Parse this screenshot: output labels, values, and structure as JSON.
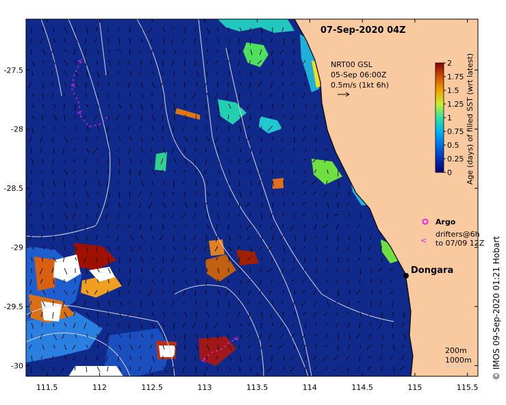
{
  "map": {
    "title": "07-Sep-2020 04Z",
    "x_ticks": [
      "111.5",
      "112",
      "112.5",
      "113",
      "113.5",
      "114",
      "114.5",
      "115",
      "115.5"
    ],
    "x_tick_values": [
      111.5,
      112,
      112.5,
      113,
      113.5,
      114,
      114.5,
      115,
      115.5
    ],
    "y_ticks": [
      "-27.5",
      "-28",
      "-28.5",
      "-29",
      "-29.5",
      "-30"
    ],
    "y_tick_values": [
      -27.5,
      -28,
      -28.5,
      -29,
      -29.5,
      -30
    ],
    "lon_range": [
      111.3,
      115.6
    ],
    "lat_range": [
      -27.07,
      -30.09
    ],
    "colors": {
      "ocean": "#102a8c",
      "land": "#f9c9a0",
      "current_arrow": "#000000",
      "contour": "#d9d9e8",
      "argo": "#ee22ee",
      "drifter": "#ee22ee"
    }
  },
  "current_legend": {
    "line1": "NRT00 GSL",
    "line2": "05-Sep 06:00Z",
    "line3": "0.5m/s (1kt 6h)"
  },
  "colorbar": {
    "label": "Age (days) of filled SST (wrt latest)",
    "ticks": [
      "0",
      "0.25",
      "0.5",
      "0.75",
      "1",
      "1.25",
      "1.5",
      "1.75",
      "2"
    ],
    "tick_values": [
      0,
      0.25,
      0.5,
      0.75,
      1,
      1.25,
      1.5,
      1.75,
      2
    ],
    "stops": [
      "#00006e",
      "#0044cc",
      "#00aaff",
      "#20e0c0",
      "#70f060",
      "#e8e820",
      "#f0a000",
      "#d05000",
      "#8a0000"
    ]
  },
  "legend": {
    "argo_label": "Argo",
    "drifter_line1": "drifters@6h",
    "drifter_line2": "to 07/09 12Z"
  },
  "place": {
    "name": "Dongara",
    "lon": 114.93,
    "lat": -29.25
  },
  "isobaths": {
    "line1": "200m",
    "line2": "1000m"
  },
  "credit": "© IMOS 09-Sep-2020 01:21 Hobart"
}
